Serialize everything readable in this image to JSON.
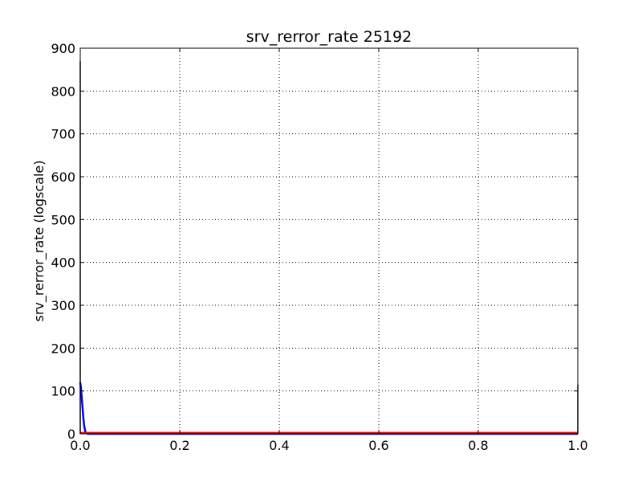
{
  "chart_data": {
    "type": "line",
    "title": "srv_rerror_rate 25192",
    "xlabel": "",
    "ylabel": "srv_rerror_rate (logscale)",
    "xlim": [
      0.0,
      1.0
    ],
    "ylim": [
      0,
      900
    ],
    "grid": true,
    "legend": "none",
    "x_ticks": [
      "0.0",
      "0.2",
      "0.4",
      "0.6",
      "0.8",
      "1.0"
    ],
    "y_ticks": [
      "0",
      "100",
      "200",
      "300",
      "400",
      "500",
      "600",
      "700",
      "800",
      "900"
    ],
    "series": [
      {
        "color": "#0000ff",
        "x": [
          0.0,
          0.002,
          0.004,
          0.006,
          0.008,
          0.01,
          0.012,
          0.015,
          0.02,
          1.0
        ],
        "y": [
          120,
          100,
          70,
          40,
          18,
          6,
          2,
          0,
          0,
          0
        ]
      },
      {
        "color": "#ff0000",
        "x": [
          0.0,
          1.0
        ],
        "y": [
          2,
          2
        ]
      },
      {
        "color": "#000000",
        "x": [
          0.0,
          0.0
        ],
        "y": [
          0,
          870
        ]
      },
      {
        "color": "#000000",
        "x": [
          1.0,
          1.0
        ],
        "y": [
          0,
          115
        ]
      }
    ]
  }
}
